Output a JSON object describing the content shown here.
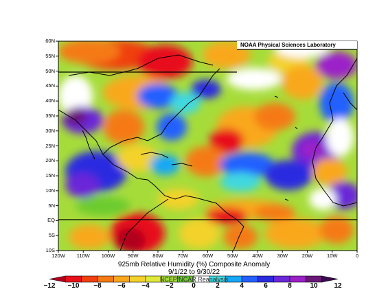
{
  "credit": "NOAA Physical Sciences Laboratory",
  "title": "925mb Relative Humidity (%) Composite Anomaly",
  "date_range": "9/1/22  to 9/30/22",
  "watermark": "NCEP/NCAR Reanalysis",
  "lat_labels": [
    "60N",
    "55N",
    "50N",
    "45N",
    "40N",
    "35N",
    "30N",
    "25N",
    "20N",
    "15N",
    "10N",
    "5N",
    "EQ",
    "5S",
    "10S"
  ],
  "lon_labels": [
    "120W",
    "110W",
    "100W",
    "90W",
    "80W",
    "70W",
    "60W",
    "50W",
    "40W",
    "30W",
    "20W",
    "10W",
    "0"
  ],
  "colorbar": {
    "ticks": [
      "−12",
      "−10",
      "−8",
      "−6",
      "−4",
      "−2",
      "0",
      "2",
      "4",
      "6",
      "8",
      "10",
      "12"
    ],
    "colors": [
      "#b0001e",
      "#e8101a",
      "#f04010",
      "#f57a12",
      "#f9a81e",
      "#f3d22c",
      "#dfe93a",
      "#a6dc3a",
      "#6ccb2e",
      "#ffffff",
      "#3fd8e0",
      "#16a8f5",
      "#2460ff",
      "#2b2be0",
      "#6a28d8",
      "#9b20c8",
      "#6a1878",
      "#3a0a4e"
    ],
    "min": -12,
    "max": 12
  },
  "colors": {
    "background": "#ffffff",
    "coastline": "#000000"
  }
}
